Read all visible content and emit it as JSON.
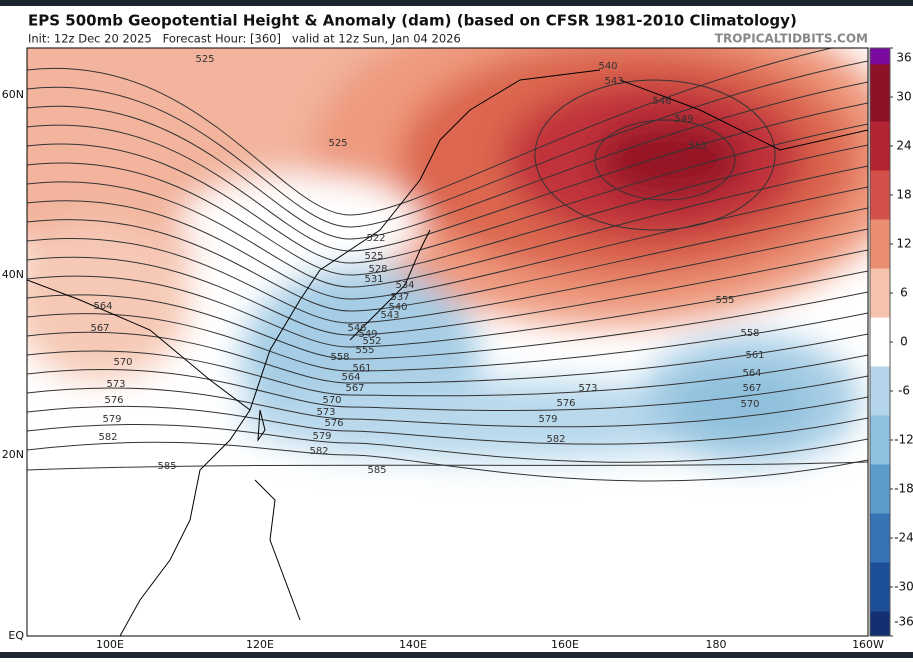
{
  "header": {
    "title": "EPS 500mb Geopotential Height & Anomaly (dam) (based on CFSR 1981-2010 Climatology)",
    "subtitle": "Init: 12z Dec 20 2025   Forecast Hour: [360]   valid at 12z Sun, Jan 04 2026",
    "source": "TROPICALTIDBITS.COM"
  },
  "map": {
    "latitude_labels": [
      "60N",
      "40N",
      "20N",
      "EQ"
    ],
    "longitude_labels": [
      "100E",
      "120E",
      "140E",
      "160E",
      "180",
      "160W"
    ],
    "contour_labels": [
      "525",
      "540",
      "543",
      "546",
      "549",
      "552",
      "525",
      "522",
      "525",
      "528",
      "531",
      "534",
      "537",
      "540",
      "543",
      "546",
      "549",
      "552",
      "555",
      "558",
      "561",
      "564",
      "567",
      "570",
      "573",
      "576",
      "579",
      "582",
      "585",
      "564",
      "567",
      "570",
      "573",
      "576",
      "579",
      "582",
      "585",
      "573",
      "576",
      "579",
      "582",
      "555",
      "558",
      "561",
      "564",
      "567",
      "570"
    ]
  },
  "colorbar": {
    "ticks": [
      36,
      30,
      24,
      18,
      12,
      6,
      0,
      -6,
      -12,
      -18,
      -24,
      -30,
      -36
    ]
  }
}
